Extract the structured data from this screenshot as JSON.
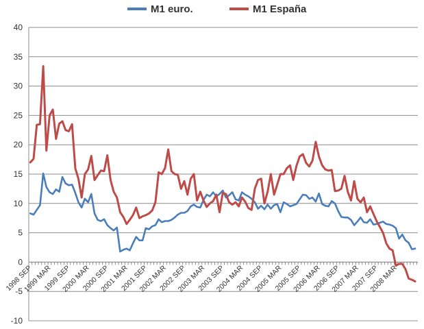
{
  "chart_data": {
    "type": "line",
    "title": "",
    "xlabel": "",
    "ylabel": "",
    "ylim": [
      -10,
      40
    ],
    "yticks": [
      -10,
      -5,
      0,
      5,
      10,
      15,
      20,
      25,
      30,
      35,
      40
    ],
    "grid": "horizontal",
    "legend_position": "top-center",
    "x_tick_labels": [
      "1998 SEP",
      "1999 MAR",
      "1999 SEP",
      "2000 MAR",
      "2000 SEP",
      "2001 MAR",
      "2001 SEP",
      "2002 MAR",
      "2002 SEP",
      "2003 MAR",
      "2003 SEP",
      "2004 MAR",
      "2004 SEP",
      "2005 MAR",
      "2005 SEP",
      "2006 MAR",
      "2006 SEP",
      "2007 MAR",
      "2007 SEP",
      "2008 MAR"
    ],
    "series": [
      {
        "name": "M1 euro.",
        "color": "#4a7ebb",
        "values": [
          8.3,
          8.1,
          8.9,
          9.7,
          15.1,
          12.8,
          11.9,
          11.6,
          12.4,
          12.0,
          14.5,
          13.4,
          13.1,
          13.2,
          11.8,
          10.2,
          9.3,
          10.8,
          10.2,
          11.6,
          8.3,
          7.2,
          7.0,
          7.3,
          6.3,
          5.8,
          5.4,
          5.9,
          1.8,
          2.1,
          2.3,
          2.0,
          3.2,
          4.3,
          3.7,
          3.7,
          5.8,
          5.6,
          6.1,
          6.3,
          7.3,
          6.8,
          7.0,
          7.0,
          7.2,
          7.6,
          8.1,
          8.4,
          8.4,
          8.7,
          9.5,
          9.8,
          9.4,
          9.3,
          10.6,
          11.5,
          11.2,
          11.9,
          11.2,
          11.6,
          12.2,
          11.0,
          11.4,
          11.9,
          10.7,
          10.5,
          11.9,
          11.5,
          11.2,
          10.8,
          10.2,
          9.1,
          9.6,
          9.0,
          9.8,
          9.1,
          9.7,
          9.9,
          8.5,
          10.2,
          9.9,
          9.5,
          9.7,
          9.9,
          10.7,
          11.5,
          11.4,
          10.8,
          11.0,
          10.3,
          11.7,
          9.9,
          9.6,
          9.5,
          10.4,
          10.0,
          8.7,
          7.7,
          7.6,
          7.6,
          7.2,
          6.3,
          6.9,
          7.6,
          6.8,
          6.7,
          7.3,
          6.4,
          6.5,
          6.7,
          6.9,
          6.5,
          6.4,
          6.2,
          5.8,
          4.0,
          4.7,
          3.7,
          3.3,
          2.2,
          2.3
        ]
      },
      {
        "name": "M1 España",
        "color": "#be4b48",
        "values": [
          17.0,
          17.6,
          23.4,
          23.5,
          33.4,
          19.0,
          25.0,
          26.0,
          21.0,
          23.6,
          24.0,
          22.5,
          22.3,
          23.5,
          16.0,
          14.2,
          11.0,
          15.0,
          15.8,
          18.1,
          14.0,
          14.8,
          15.6,
          15.5,
          18.2,
          14.0,
          12.0,
          11.0,
          8.5,
          7.7,
          6.5,
          7.2,
          8.0,
          9.3,
          7.5,
          7.8,
          8.0,
          8.3,
          8.8,
          10.2,
          15.3,
          15.0,
          16.0,
          19.2,
          15.5,
          15.0,
          14.9,
          12.5,
          13.8,
          11.5,
          14.2,
          15.0,
          10.5,
          12.0,
          10.5,
          9.4,
          10.0,
          10.4,
          11.5,
          8.5,
          11.8,
          11.6,
          10.2,
          9.8,
          10.2,
          9.5,
          11.0,
          10.3,
          9.2,
          8.9,
          12.5,
          14.0,
          14.2,
          10.0,
          12.0,
          15.0,
          11.5,
          13.2,
          15.0,
          15.0,
          16.0,
          16.5,
          14.0,
          16.4,
          18.0,
          18.4,
          16.9,
          16.3,
          17.3,
          20.5,
          18.0,
          16.5,
          15.8,
          15.6,
          15.7,
          12.1,
          12.2,
          12.5,
          14.7,
          12.0,
          10.5,
          13.8,
          10.8,
          10.2,
          11.0,
          8.5,
          9.5,
          8.2,
          7.0,
          6.0,
          5.0,
          3.2,
          2.3,
          2.0,
          -0.6,
          -0.3,
          -0.3,
          -1.2,
          -2.8,
          -3.0,
          -3.3
        ]
      }
    ]
  }
}
